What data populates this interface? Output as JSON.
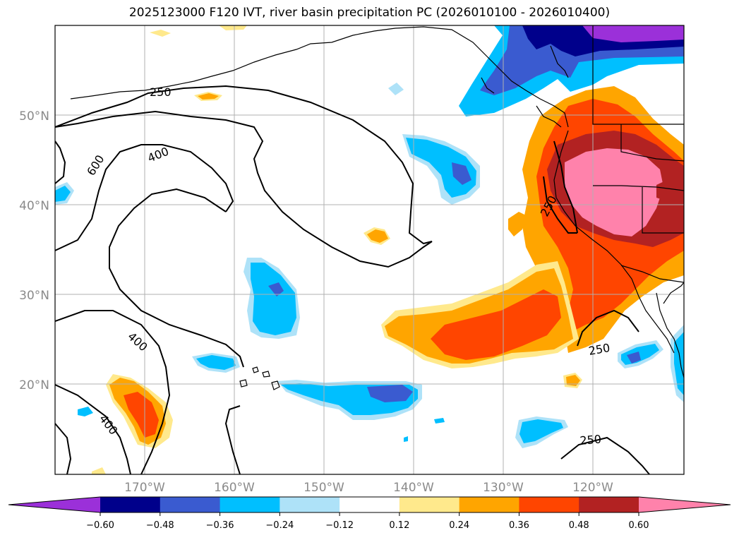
{
  "title": "2025123000 F120 IVT, river basin precipitation PC (2026010100 - 2026010400)",
  "map": {
    "lat_labels": [
      "20°N",
      "30°N",
      "40°N",
      "50°N"
    ],
    "lon_labels": [
      "170°W",
      "160°W",
      "150°W",
      "140°W",
      "130°W",
      "120°W"
    ],
    "ivt_contour_labels": [
      "250",
      "400",
      "600",
      "400",
      "400",
      "250",
      "250",
      "250"
    ]
  },
  "colorbar": {
    "ticks": [
      "−0.60",
      "−0.48",
      "−0.36",
      "−0.24",
      "−0.12",
      "0.12",
      "0.24",
      "0.36",
      "0.48",
      "0.60"
    ],
    "colors": [
      "#9b30d9",
      "#00008b",
      "#3a5bd0",
      "#00bfff",
      "#aee2f8",
      "#ffffff",
      "#ffe98c",
      "#ffa500",
      "#ff4500",
      "#b22222",
      "#ff82ab"
    ]
  },
  "colors": {
    "pink": "#ff82ab",
    "firebrick": "#b22222",
    "orangered": "#ff4500",
    "orange": "#ffa500",
    "lightyellow": "#ffe98c",
    "lightblue": "#aee2f8",
    "deepskyblue": "#00bfff",
    "royalblue": "#3a5bd0",
    "navy": "#00008b",
    "purple": "#9b30d9"
  }
}
